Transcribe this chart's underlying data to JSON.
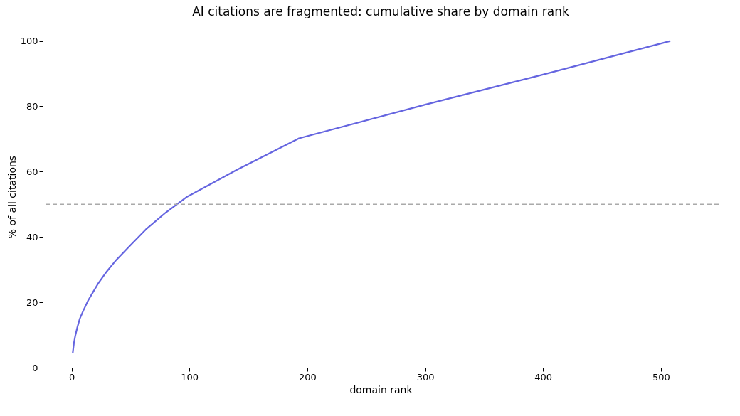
{
  "chart_data": {
    "type": "line",
    "title": "AI citations are fragmented: cumulative share by domain rank",
    "xlabel": "domain rank",
    "ylabel": "% of all citations",
    "x": [
      1,
      2,
      3,
      5,
      7,
      10,
      14,
      18,
      23,
      30,
      38,
      50,
      63,
      80,
      98,
      140,
      193,
      300,
      400,
      508
    ],
    "series": [
      {
        "color": "#6565e0",
        "values": [
          4.5,
          7.5,
          9.5,
          12.5,
          15,
          17.5,
          20.5,
          23,
          26,
          29.5,
          33,
          37.5,
          42.3,
          47.5,
          52.3,
          60.5,
          70.2,
          80.5,
          89.7,
          100
        ]
      }
    ],
    "xlim": [
      -24.5,
      549
    ],
    "ylim": [
      0,
      104.7
    ],
    "xticks": [
      0,
      100,
      200,
      300,
      400,
      500
    ],
    "yticks": [
      0,
      20,
      40,
      60,
      80,
      100
    ],
    "ref_lines": [
      {
        "axis": "y",
        "value": 50,
        "color": "#aaaaaa",
        "line_style": "dashed"
      }
    ],
    "grid": false,
    "marker": "none",
    "line_style": "solid"
  }
}
